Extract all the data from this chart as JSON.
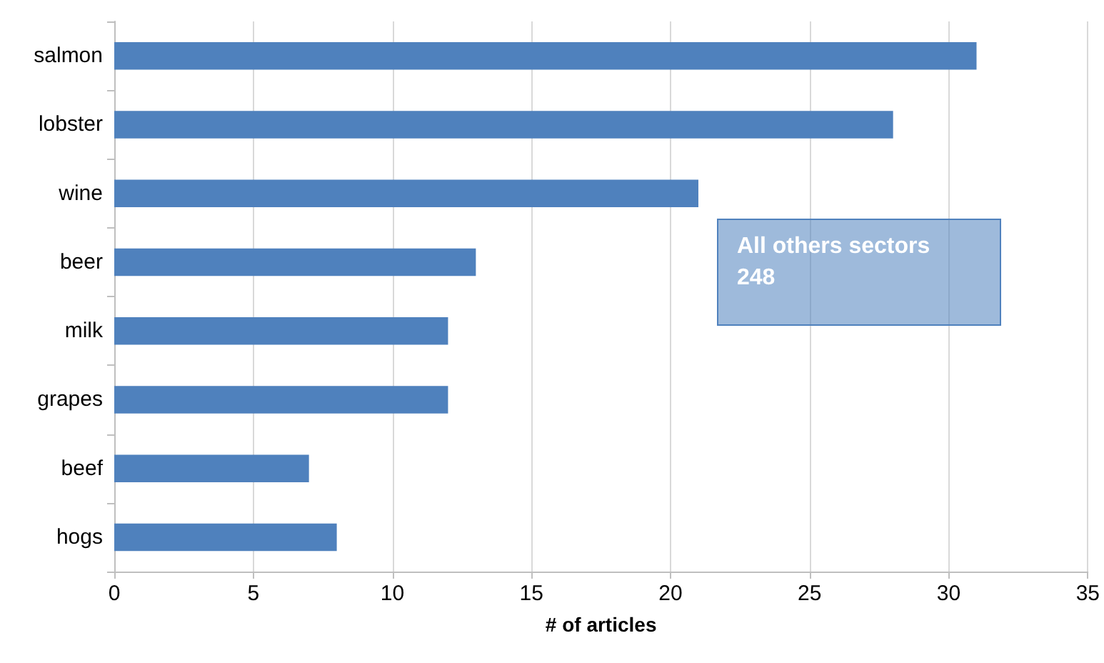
{
  "chart_data": {
    "type": "bar",
    "orientation": "horizontal",
    "xlabel": "# of articles",
    "categories": [
      "salmon",
      "lobster",
      "wine",
      "beer",
      "milk",
      "grapes",
      "beef",
      "hogs"
    ],
    "values": [
      31,
      28,
      21,
      13,
      12,
      12,
      7,
      8
    ],
    "color": "#4f81bd",
    "xlim": [
      0,
      35
    ],
    "xticks": [
      0,
      5,
      10,
      15,
      20,
      25,
      30,
      35
    ],
    "grid": "x",
    "annotations": [
      "All others sectors\n248"
    ]
  }
}
